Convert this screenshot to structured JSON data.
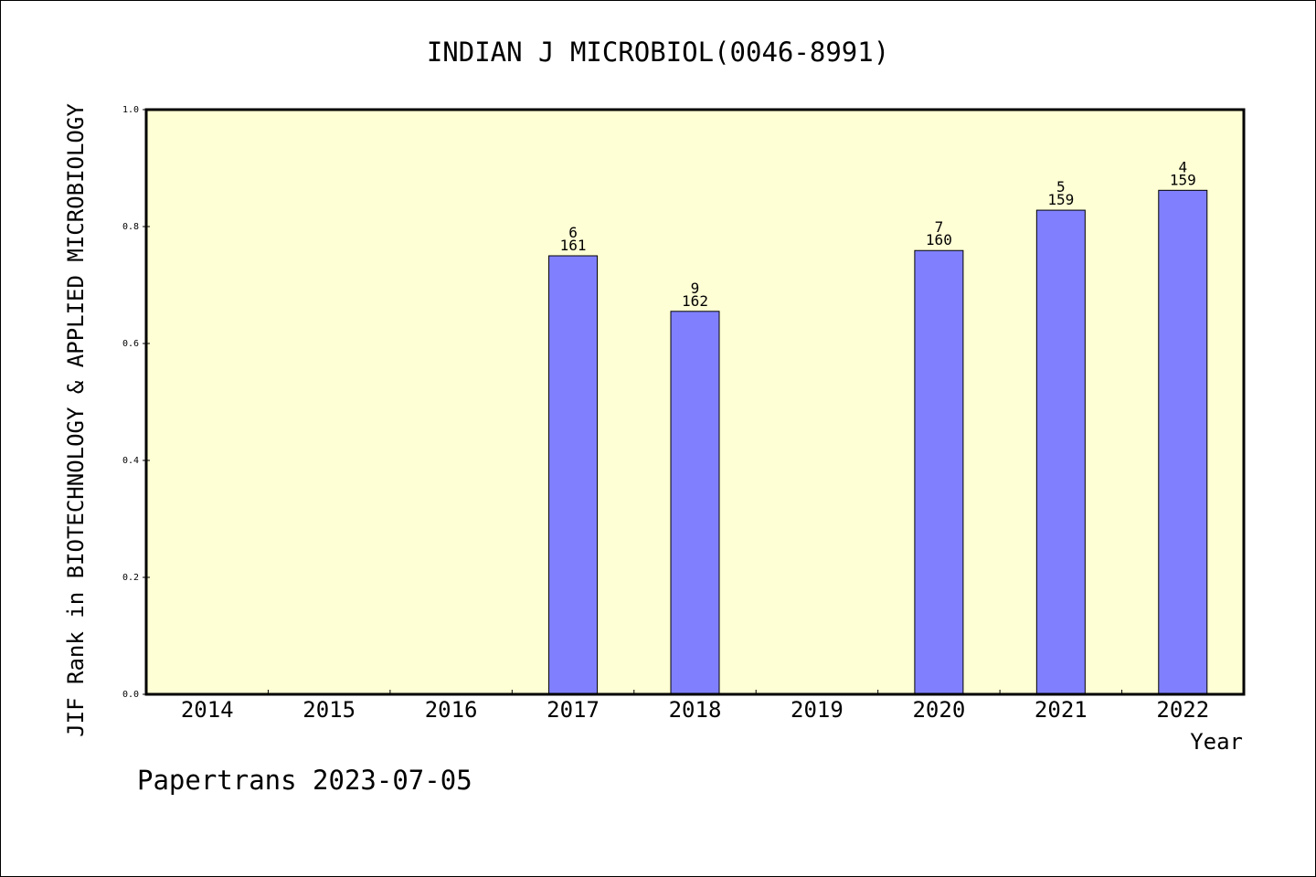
{
  "chart_data": {
    "type": "bar",
    "title": "INDIAN J MICROBIOL(0046-8991)",
    "xlabel": "Year",
    "ylabel": "JIF Rank in BIOTECHNOLOGY & APPLIED MICROBIOLOGY",
    "ylim": [
      0,
      1.0
    ],
    "yticks": [
      "0.0",
      "0.2",
      "0.4",
      "0.6",
      "0.8",
      "1.0"
    ],
    "categories": [
      "2014",
      "2015",
      "2016",
      "2017",
      "2018",
      "2019",
      "2020",
      "2021",
      "2022"
    ],
    "values": [
      null,
      null,
      null,
      0.75,
      0.655,
      null,
      0.759,
      0.828,
      0.862
    ],
    "rank_labels": [
      "",
      "",
      "",
      "6",
      "9",
      "",
      "7",
      "5",
      "4"
    ],
    "total_labels": [
      "",
      "",
      "",
      "161",
      "162",
      "",
      "160",
      "159",
      "159"
    ],
    "grid": false,
    "colors": {
      "plot_background": "#FFFFD5",
      "bar_fill": "#8080FF",
      "bar_stroke": "#000000"
    }
  },
  "footer": "Papertrans 2023-07-05"
}
